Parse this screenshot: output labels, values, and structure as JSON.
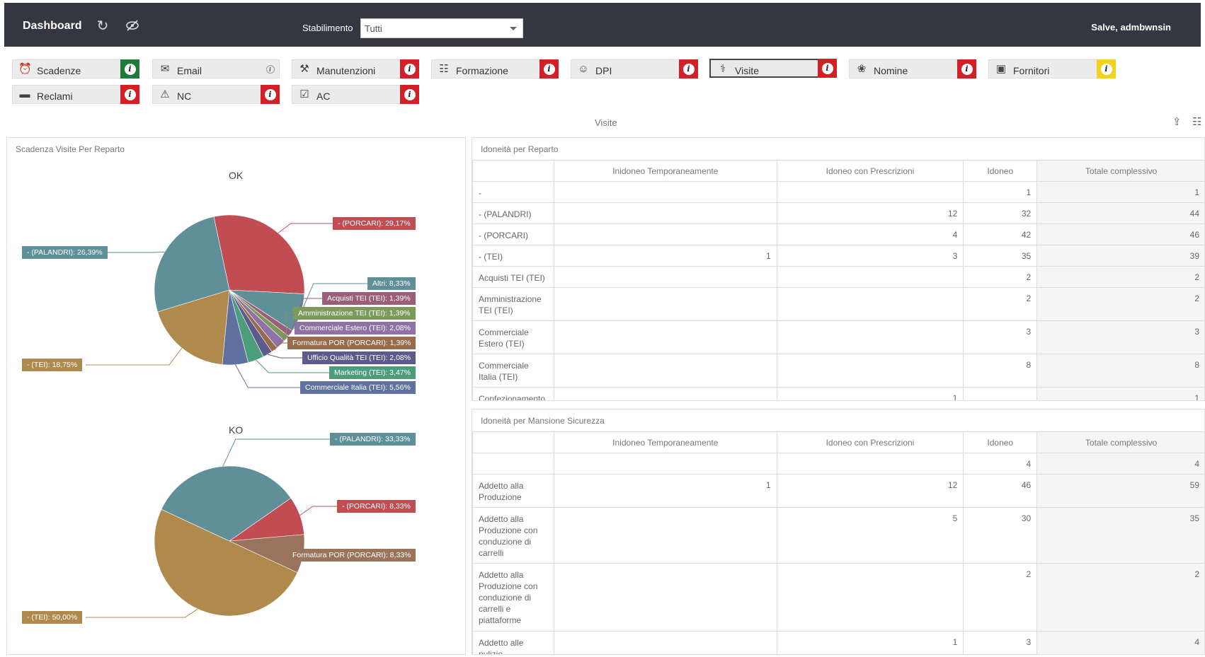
{
  "header": {
    "title": "Dashboard",
    "stabilimento_label": "Stabilimento",
    "stabilimento_value": "Tutti",
    "greeting": "Salve, admbwnsin"
  },
  "modules": [
    {
      "label": "Scadenze",
      "icon": "alarm-clock-icon",
      "badge": "green"
    },
    {
      "label": "Email",
      "icon": "envelope-icon",
      "badge": "none"
    },
    {
      "label": "Manutenzioni",
      "icon": "tools-icon",
      "badge": "red"
    },
    {
      "label": "Formazione",
      "icon": "document-icon",
      "badge": "red"
    },
    {
      "label": "DPI",
      "icon": "worker-icon",
      "badge": "red"
    },
    {
      "label": "Visite",
      "icon": "stethoscope-icon",
      "badge": "red",
      "active": true
    },
    {
      "label": "Nomine",
      "icon": "ribbon-icon",
      "badge": "red"
    },
    {
      "label": "Fornitori",
      "icon": "truck-icon",
      "badge": "yellow"
    },
    {
      "label": "Reclami",
      "icon": "speech-bubble-icon",
      "badge": "red"
    },
    {
      "label": "NC",
      "icon": "warning-icon",
      "badge": "red"
    },
    {
      "label": "AC",
      "icon": "file-check-icon",
      "badge": "red"
    }
  ],
  "colors": {
    "red": "#d32027",
    "green": "#1e7b3a",
    "yellow": "#f3d320",
    "teal": "#5f8f98",
    "crimson": "#c14d53",
    "ochre": "#b08a4c",
    "slate": "#60719f",
    "moss": "#7d9a5d",
    "mauve": "#9b5d78",
    "lavender": "#8e72a6",
    "brown": "#966c4d",
    "indigo": "#5e5a8c",
    "green2": "#4c9d7b",
    "blue2": "#52679d",
    "ko_brown": "#9a735c"
  },
  "section": {
    "title": "Visite"
  },
  "left_panel": {
    "title": "Scadenza Visite Per Reparto"
  },
  "charts": {
    "ok": {
      "title": "OK",
      "slices": [
        {
          "label": "- (PORCARI)",
          "value": 29.17,
          "display": "- (PORCARI): 29,17%",
          "color": "#c14d53"
        },
        {
          "label": "Altri",
          "value": 8.33,
          "display": "Altri: 8,33%",
          "color": "#5f8f98"
        },
        {
          "label": "Acquisti TEI (TEI)",
          "value": 1.39,
          "display": "Acquisti TEI (TEI): 1,39%",
          "color": "#9b5d78"
        },
        {
          "label": "Amministrazione TEI (TEI)",
          "value": 1.39,
          "display": "Amministrazione TEI (TEI): 1,39%",
          "color": "#7d9a5d"
        },
        {
          "label": "Commerciale Estero (TEI)",
          "value": 2.08,
          "display": "Commerciale Estero (TEI): 2,08%",
          "color": "#8e72a6"
        },
        {
          "label": "Formatura POR (PORCARI)",
          "value": 1.39,
          "display": "Formatura POR (PORCARI): 1,39%",
          "color": "#966c4d"
        },
        {
          "label": "Ufficio Qualità TEI (TEI)",
          "value": 2.08,
          "display": "Ufficio Qualità TEI (TEI): 2,08%",
          "color": "#5e5a8c"
        },
        {
          "label": "Marketing (TEI)",
          "value": 3.47,
          "display": "Marketing (TEI): 3,47%",
          "color": "#4c9d7b"
        },
        {
          "label": "Commerciale Italia (TEI)",
          "value": 5.56,
          "display": "Commerciale Italia (TEI): 5,56%",
          "color": "#60719f"
        },
        {
          "label": "- (TEI)",
          "value": 18.75,
          "display": "- (TEI): 18,75%",
          "color": "#b08a4c"
        },
        {
          "label": "- (PALANDRI)",
          "value": 26.39,
          "display": "- (PALANDRI): 26,39%",
          "color": "#5f8f98"
        }
      ]
    },
    "ko": {
      "title": "KO",
      "slices": [
        {
          "label": "- (PORCARI)",
          "value": 8.33,
          "display": "- (PORCARI): 8,33%",
          "color": "#c14d53"
        },
        {
          "label": "Formatura POR (PORCARI)",
          "value": 8.33,
          "display": "Formatura POR (PORCARI): 8,33%",
          "color": "#9a735c"
        },
        {
          "label": "- (TEI)",
          "value": 50.0,
          "display": "- (TEI): 50,00%",
          "color": "#b08a4c"
        },
        {
          "label": "- (PALANDRI)",
          "value": 33.33,
          "display": "- (PALANDRI): 33,33%",
          "color": "#5f8f98"
        }
      ]
    }
  },
  "table_reparto": {
    "title": "Idoneità per Reparto",
    "columns": [
      "",
      "Inidoneo Temporaneamente",
      "Idoneo con Prescrizioni",
      "Idoneo",
      "Totale complessivo"
    ],
    "rows": [
      [
        "-",
        "",
        "",
        "1",
        "1"
      ],
      [
        "- (PALANDRI)",
        "",
        "12",
        "32",
        "44"
      ],
      [
        "- (PORCARI)",
        "",
        "4",
        "42",
        "46"
      ],
      [
        "- (TEI)",
        "1",
        "3",
        "35",
        "39"
      ],
      [
        "Acquisti TEI (TEI)",
        "",
        "",
        "2",
        "2"
      ],
      [
        "Amministrazione TEI (TEI)",
        "",
        "",
        "2",
        "2"
      ],
      [
        "Commerciale Estero (TEI)",
        "",
        "",
        "3",
        "3"
      ],
      [
        "Commerciale Italia (TEI)",
        "",
        "",
        "8",
        "8"
      ],
      [
        "Confezionamento",
        "",
        "1",
        "",
        "1"
      ]
    ]
  },
  "table_mansione": {
    "title": "Idoneità per Mansione Sicurezza",
    "columns": [
      "",
      "Inidoneo Temporaneamente",
      "Idoneo con Prescrizioni",
      "Idoneo",
      "Totale complessivo"
    ],
    "rows": [
      [
        "",
        "",
        "",
        "4",
        "4"
      ],
      [
        "Addetto alla Produzione",
        "1",
        "12",
        "46",
        "59"
      ],
      [
        "Addetto alla Produzione con conduzione di carrelli",
        "",
        "5",
        "30",
        "35"
      ],
      [
        "Addetto alla Produzione con conduzione di carrelli e piattaforme",
        "",
        "",
        "2",
        "2"
      ],
      [
        "Addetto alle pulizie",
        "",
        "1",
        "3",
        "4"
      ]
    ]
  }
}
